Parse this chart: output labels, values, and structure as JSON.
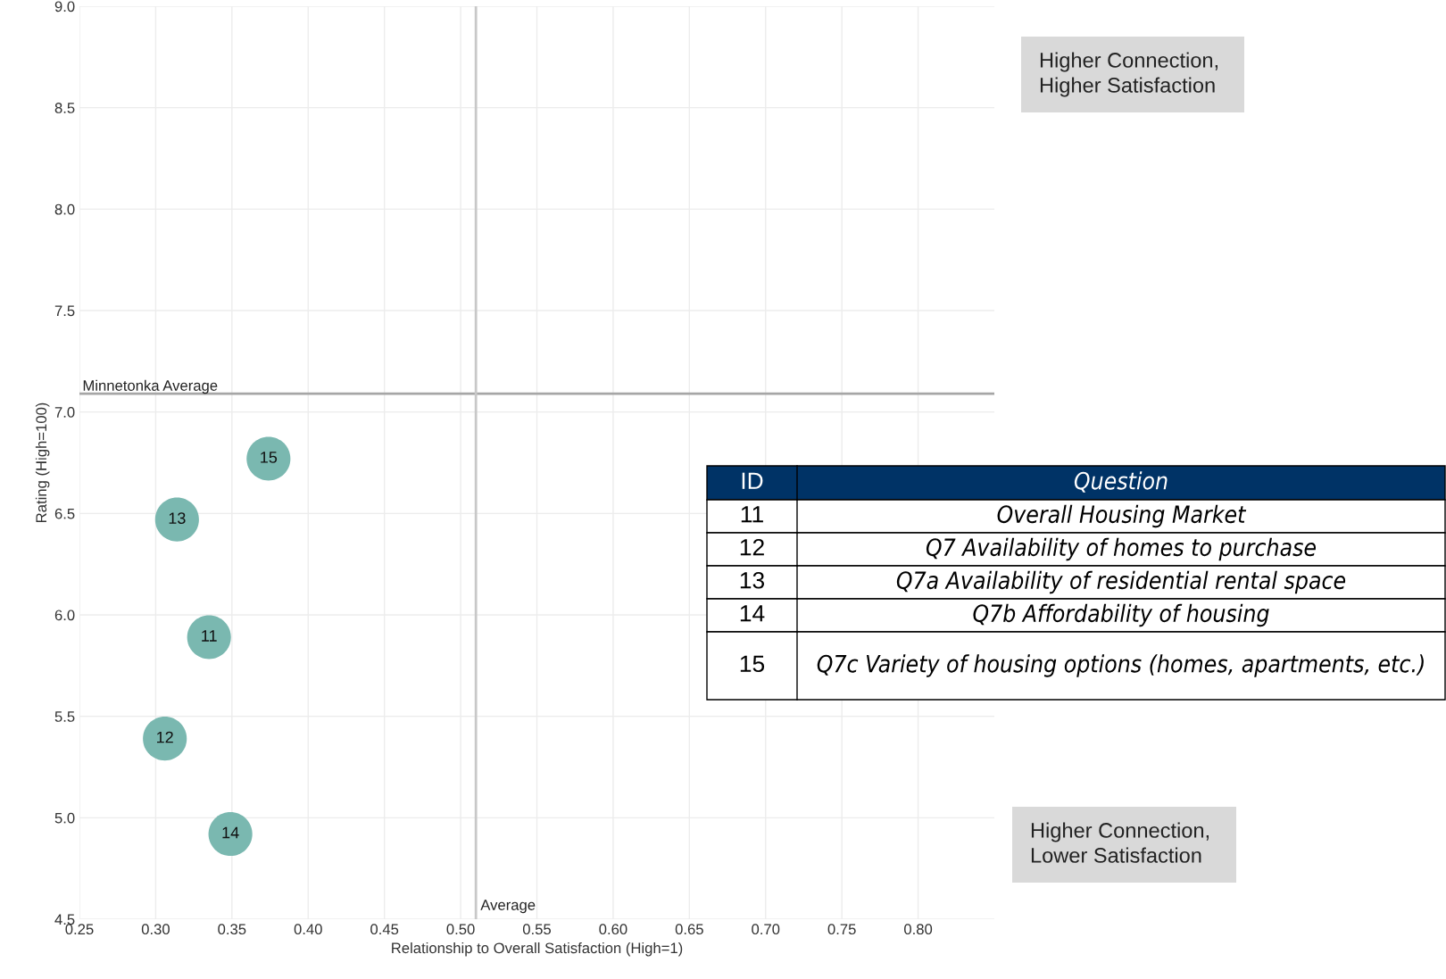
{
  "chart_data": {
    "type": "scatter",
    "xlabel": "Relationship to Overall Satisfaction (High=1)",
    "ylabel": "Rating (High=100)",
    "series": [
      {
        "name": "11",
        "color": "#7ab8b0",
        "x": [
          0.335
        ],
        "values": [
          5.89
        ]
      },
      {
        "name": "12",
        "color": "#7ab8b0",
        "x": [
          0.306
        ],
        "values": [
          5.39
        ]
      },
      {
        "name": "13",
        "color": "#7ab8b0",
        "x": [
          0.314
        ],
        "values": [
          6.47
        ]
      },
      {
        "name": "14",
        "color": "#7ab8b0",
        "x": [
          0.349
        ],
        "values": [
          4.92
        ]
      },
      {
        "name": "15",
        "color": "#7ab8b0",
        "x": [
          0.374
        ],
        "values": [
          6.77
        ]
      }
    ],
    "marker": "circle",
    "xlim": [
      0.25,
      0.85
    ],
    "xticks": [
      {
        "value": 0.25,
        "label": "0.25"
      },
      {
        "value": 0.3,
        "label": "0.30"
      },
      {
        "value": 0.35,
        "label": "0.35"
      },
      {
        "value": 0.4,
        "label": "0.40"
      },
      {
        "value": 0.45,
        "label": "0.45"
      },
      {
        "value": 0.5,
        "label": "0.50"
      },
      {
        "value": 0.55,
        "label": "0.55"
      },
      {
        "value": 0.6,
        "label": "0.60"
      },
      {
        "value": 0.65,
        "label": "0.65"
      },
      {
        "value": 0.7,
        "label": "0.70"
      },
      {
        "value": 0.75,
        "label": "0.75"
      },
      {
        "value": 0.8,
        "label": "0.80"
      }
    ],
    "ylim": [
      4.5,
      9.0
    ],
    "yticks": [
      {
        "value": 4.5,
        "label": "4.5"
      },
      {
        "value": 5.0,
        "label": "5.0"
      },
      {
        "value": 5.5,
        "label": "5.5"
      },
      {
        "value": 6.0,
        "label": "6.0"
      },
      {
        "value": 6.5,
        "label": "6.5"
      },
      {
        "value": 7.0,
        "label": "7.0"
      },
      {
        "value": 7.5,
        "label": "7.5"
      },
      {
        "value": 8.0,
        "label": "8.0"
      },
      {
        "value": 8.5,
        "label": "8.5"
      },
      {
        "value": 9.0,
        "label": "9.0"
      }
    ],
    "grid": true,
    "ref_lines": [
      {
        "axis": "y",
        "value": 7.09,
        "label": "Minnetonka Average",
        "color": "#a6a6a6"
      },
      {
        "axis": "x",
        "value": 0.51,
        "label": "Average",
        "color": "#c8c8c8"
      }
    ],
    "annotations": [
      "Higher Connection,\nHigher Satisfaction",
      "Higher Connection,\nLower Satisfaction",
      "ID",
      "Question",
      "11",
      "Overall Housing Market",
      "12",
      "Q7 Availability of homes to purchase",
      "13",
      "Q7a Availability of residential rental space",
      "14",
      "Q7b Affordability of housing",
      "15",
      "Q7c Variety of housing options (homes, apartments, etc.)"
    ]
  }
}
